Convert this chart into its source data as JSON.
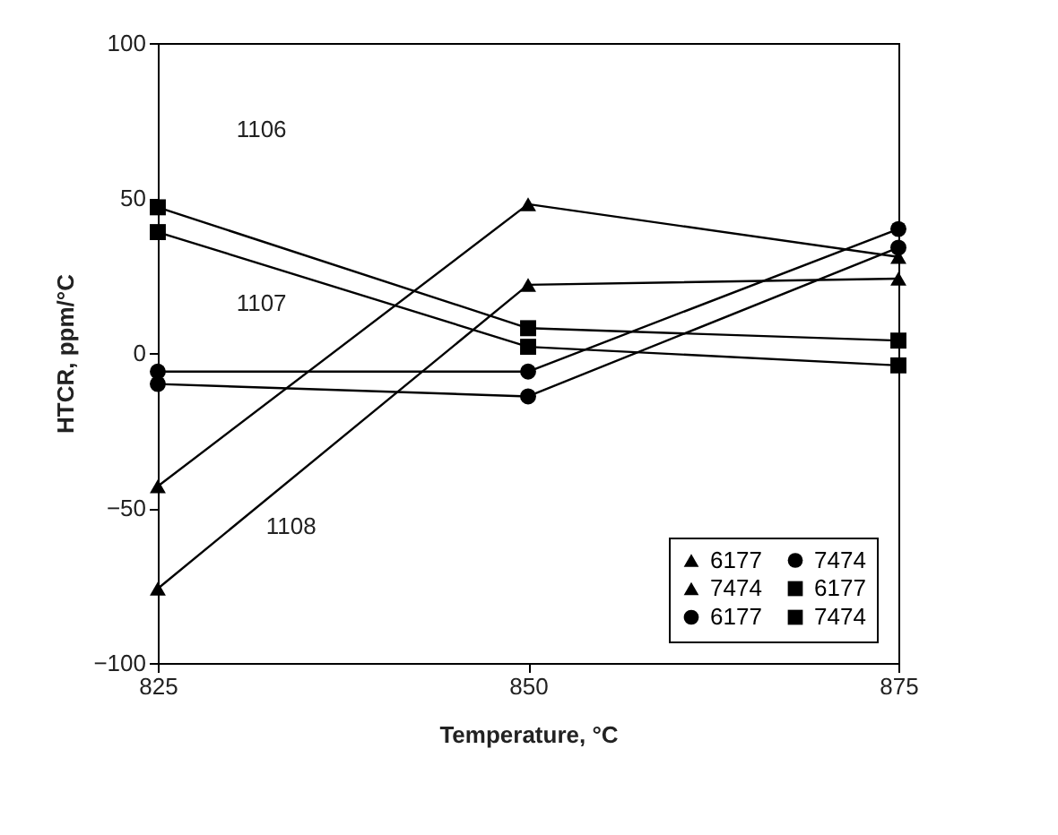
{
  "chart_data": {
    "type": "line",
    "xlabel": "Temperature, °C",
    "ylabel": "HTCR, ppm/°C",
    "x": [
      825,
      850,
      875
    ],
    "series": [
      {
        "name": "6177",
        "color": "#000000",
        "marker": "triangle",
        "values": [
          -43,
          48,
          31
        ]
      },
      {
        "name": "7474",
        "color": "#000000",
        "marker": "circle",
        "values": [
          -6,
          -6,
          40
        ]
      },
      {
        "name": "7474",
        "color": "#000000",
        "marker": "triangle",
        "values": [
          -76,
          22,
          24
        ]
      },
      {
        "name": "6177",
        "color": "#000000",
        "marker": "square",
        "values": [
          47,
          8,
          4
        ]
      },
      {
        "name": "6177",
        "color": "#000000",
        "marker": "circle",
        "values": [
          -10,
          -14,
          34
        ]
      },
      {
        "name": "7474",
        "color": "#000000",
        "marker": "square",
        "values": [
          39,
          2,
          -4
        ]
      }
    ],
    "annotations": [
      "1106",
      "1107",
      "1108"
    ],
    "xlim": [
      825,
      875
    ],
    "xticks": [
      825,
      850,
      875
    ],
    "ylim": [
      -100,
      100
    ],
    "yticks": [
      -100,
      -50,
      0,
      50,
      100
    ],
    "grid": false,
    "legend": "bottom right",
    "line_style": "solid"
  }
}
